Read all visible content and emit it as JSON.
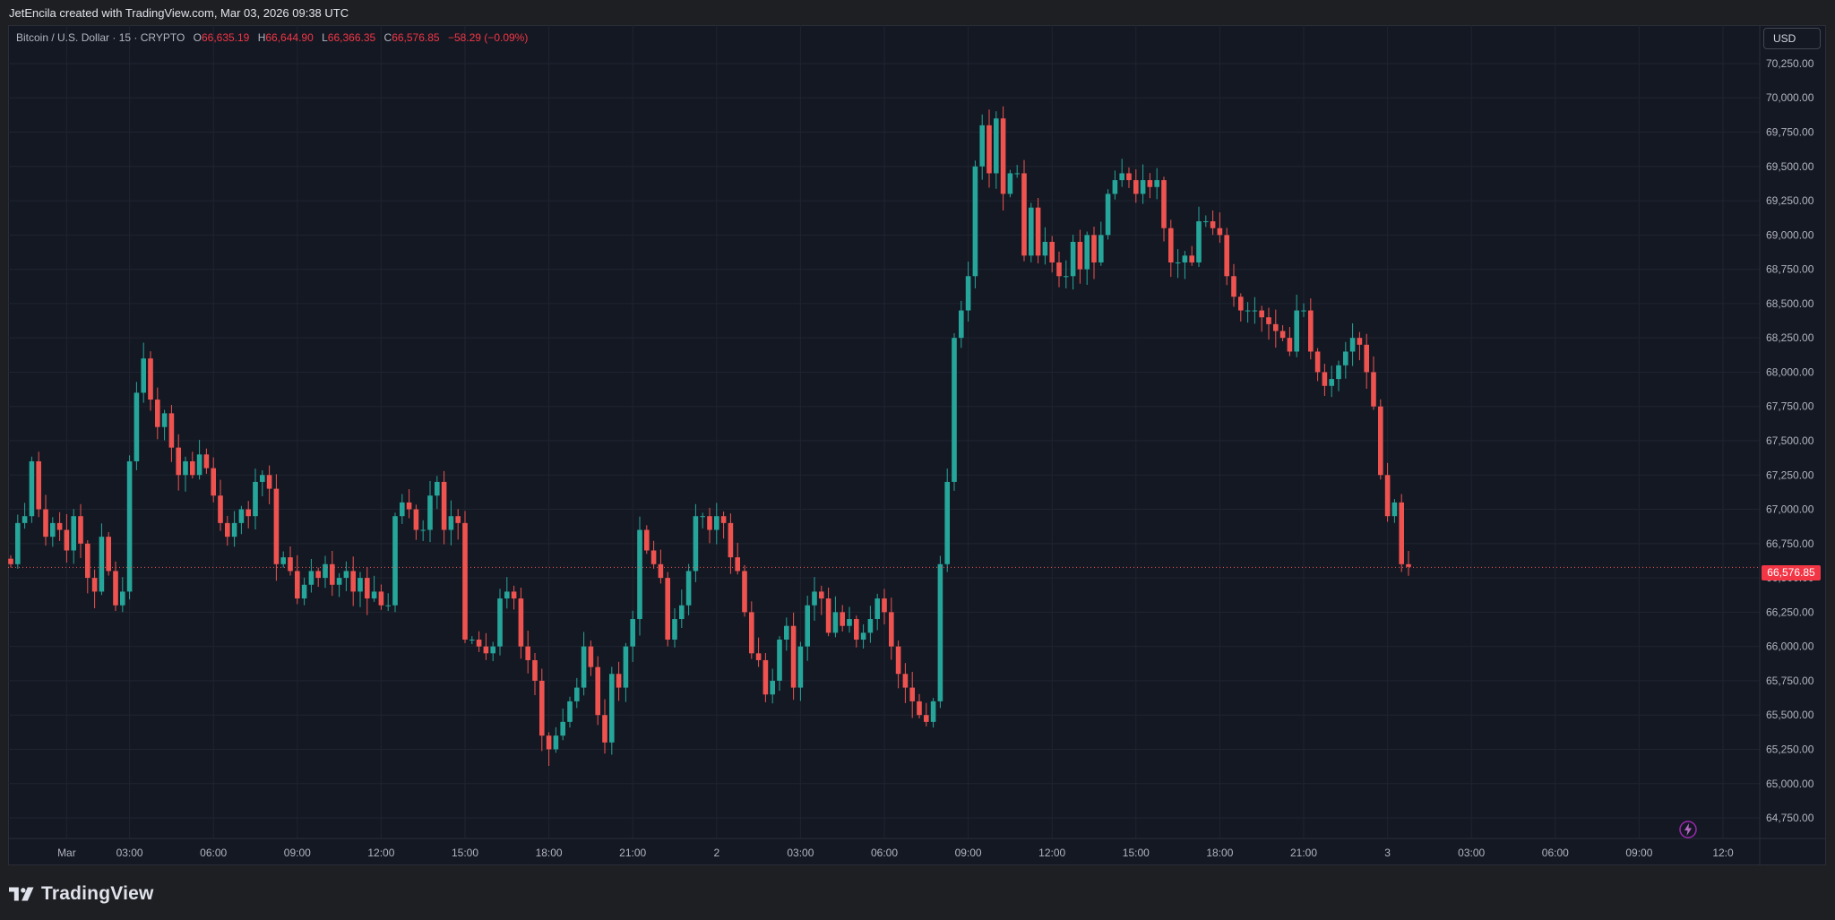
{
  "header": {
    "attribution": "JetEncila created with TradingView.com, Mar 03, 2026 09:38 UTC"
  },
  "legend": {
    "symbol": "Bitcoin / U.S. Dollar · 15 · CRYPTO",
    "open_label": "O",
    "open": "66,635.19",
    "high_label": "H",
    "high": "66,644.90",
    "low_label": "L",
    "low": "66,366.35",
    "close_label": "C",
    "close": "66,576.85",
    "change": "−58.29 (−0.09%)"
  },
  "price_scale": {
    "currency": "USD",
    "last_price": "66,576.85"
  },
  "footer": {
    "brand": "TradingView"
  },
  "colors": {
    "up": "#26a69a",
    "down": "#ef5350",
    "background": "#141823",
    "grid": "#1f2430",
    "text": "#b2b5be"
  },
  "icons": [
    "tradingview-logo-icon",
    "lightning-bolt-icon"
  ],
  "chart_data": {
    "type": "candlestick",
    "interval": "15",
    "ylim": [
      64600,
      70400
    ],
    "y_ticks": [
      64750,
      65000,
      65250,
      65500,
      65750,
      66000,
      66250,
      66500,
      66750,
      67000,
      67250,
      67500,
      67750,
      68000,
      68250,
      68500,
      68750,
      69000,
      69250,
      69500,
      69750,
      70000,
      70250
    ],
    "x_ticks": [
      {
        "label": "Mar",
        "i": 8
      },
      {
        "label": "03:00",
        "i": 17
      },
      {
        "label": "06:00",
        "i": 29
      },
      {
        "label": "09:00",
        "i": 41
      },
      {
        "label": "12:00",
        "i": 53
      },
      {
        "label": "15:00",
        "i": 65
      },
      {
        "label": "18:00",
        "i": 77
      },
      {
        "label": "21:00",
        "i": 89
      },
      {
        "label": "2",
        "i": 101
      },
      {
        "label": "03:00",
        "i": 113
      },
      {
        "label": "06:00",
        "i": 125
      },
      {
        "label": "09:00",
        "i": 137
      },
      {
        "label": "12:00",
        "i": 149
      },
      {
        "label": "15:00",
        "i": 161
      },
      {
        "label": "18:00",
        "i": 173
      },
      {
        "label": "21:00",
        "i": 185
      },
      {
        "label": "3",
        "i": 197
      },
      {
        "label": "03:00",
        "i": 209
      },
      {
        "label": "06:00",
        "i": 221
      },
      {
        "label": "09:00",
        "i": 233
      },
      {
        "label": "12:0",
        "i": 245
      }
    ],
    "last_price": 66576.85,
    "closes": [
      66600,
      66900,
      66950,
      67350,
      67000,
      66800,
      66900,
      66850,
      66700,
      66950,
      66750,
      66500,
      66400,
      66800,
      66550,
      66300,
      66400,
      67350,
      67850,
      68100,
      67800,
      67600,
      67700,
      67450,
      67250,
      67350,
      67250,
      67400,
      67300,
      67100,
      66900,
      66800,
      66900,
      67000,
      66950,
      67200,
      67250,
      67150,
      66600,
      66650,
      66550,
      66350,
      66450,
      66550,
      66500,
      66600,
      66450,
      66500,
      66550,
      66400,
      66500,
      66350,
      66400,
      66300,
      66300,
      66950,
      67050,
      67000,
      66850,
      66850,
      67100,
      67200,
      66850,
      66950,
      66900,
      66050,
      66050,
      66000,
      65950,
      66000,
      66350,
      66400,
      66350,
      66000,
      65900,
      65750,
      65350,
      65250,
      65350,
      65450,
      65600,
      65700,
      66000,
      65850,
      65500,
      65300,
      65800,
      65700,
      66000,
      66200,
      66850,
      66700,
      66600,
      66500,
      66050,
      66200,
      66300,
      66550,
      66950,
      66950,
      66850,
      66950,
      66900,
      66650,
      66550,
      66250,
      65950,
      65900,
      65650,
      65750,
      66050,
      66150,
      65700,
      66000,
      66300,
      66400,
      66350,
      66100,
      66250,
      66150,
      66200,
      66050,
      66100,
      66200,
      66350,
      66250,
      66000,
      65800,
      65700,
      65600,
      65500,
      65450,
      65600,
      66600,
      67200,
      68250,
      68450,
      68700,
      69500,
      69800,
      69450,
      69850,
      69300,
      69450,
      69450,
      68850,
      69200,
      68850,
      68950,
      68800,
      68700,
      68700,
      68950,
      68750,
      69000,
      68800,
      69000,
      69300,
      69400,
      69450,
      69400,
      69300,
      69400,
      69350,
      69400,
      69050,
      68800,
      68800,
      68850,
      68800,
      69100,
      69100,
      69050,
      69000,
      68700,
      68550,
      68450,
      68450,
      68450,
      68400,
      68350,
      68300,
      68250,
      68150,
      68450,
      68450,
      68150,
      68000,
      67900,
      67950,
      68050,
      68150,
      68250,
      68200,
      68000,
      67750,
      67250,
      66950,
      67050,
      66600,
      66580
    ]
  }
}
